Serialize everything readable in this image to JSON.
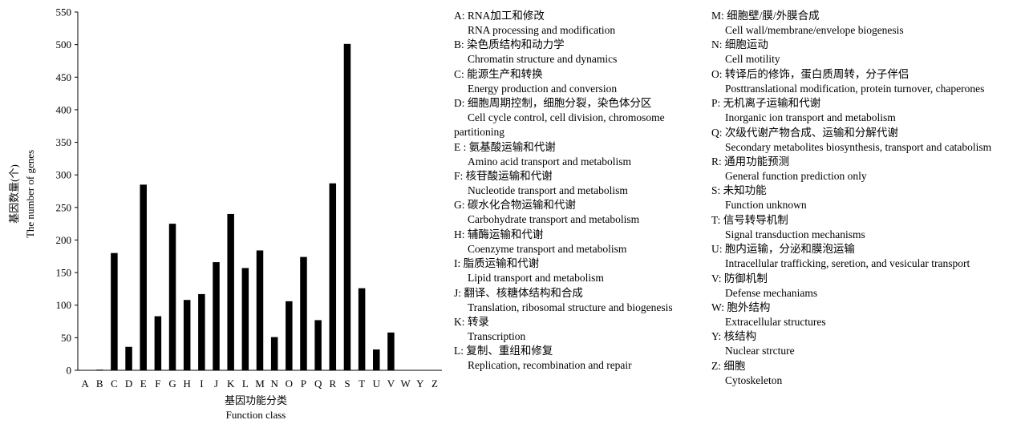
{
  "chart_data": {
    "type": "bar",
    "categories": [
      "A",
      "B",
      "C",
      "D",
      "E",
      "F",
      "G",
      "H",
      "I",
      "J",
      "K",
      "L",
      "M",
      "N",
      "O",
      "P",
      "Q",
      "R",
      "S",
      "T",
      "U",
      "V",
      "W",
      "Y",
      "Z"
    ],
    "values": [
      0,
      1,
      180,
      36,
      285,
      83,
      225,
      108,
      117,
      166,
      240,
      157,
      184,
      51,
      106,
      174,
      77,
      287,
      501,
      126,
      32,
      58,
      0,
      0,
      0
    ],
    "ylim": [
      0,
      550
    ],
    "yticks": [
      0,
      50,
      100,
      150,
      200,
      250,
      300,
      350,
      400,
      450,
      500,
      550
    ],
    "ylabel_cn": "基因数量(个)",
    "ylabel_en": "The number of genes",
    "xlabel_cn": "基因功能分类",
    "xlabel_en": "Function class",
    "bar_color": "#000000",
    "grid": false
  },
  "legend": {
    "left": [
      {
        "cn": "A: RNA加工和修改",
        "en": "RNA processing and modification"
      },
      {
        "cn": "B: 染色质结构和动力学",
        "en": "Chromatin structure and dynamics"
      },
      {
        "cn": "C: 能源生产和转换",
        "en": "Energy production and conversion"
      },
      {
        "cn": "D: 细胞周期控制，细胞分裂，染色体分区",
        "en": "Cell cycle control, cell division, chromosome",
        "en2": "partitioning"
      },
      {
        "cn": "E : 氨基酸运输和代谢",
        "en": "Amino acid transport and metabolism"
      },
      {
        "cn": "F: 核苷酸运输和代谢",
        "en": "Nucleotide transport and metabolism"
      },
      {
        "cn": "G: 碳水化合物运输和代谢",
        "en": "Carbohydrate transport and metabolism"
      },
      {
        "cn": "H: 辅酶运输和代谢",
        "en": "Coenzyme transport and  metabolism"
      },
      {
        "cn": "I: 脂质运输和代谢",
        "en": "Lipid transport and metabolism"
      },
      {
        "cn": "J: 翻译、核糖体结构和合成",
        "en": "Translation, ribosomal structure and biogenesis"
      },
      {
        "cn": "K: 转录",
        "en": "Transcription"
      },
      {
        "cn": "L: 复制、重组和修复",
        "en": "Replication, recombination and repair"
      }
    ],
    "right": [
      {
        "cn": "M: 细胞壁/膜/外膜合成",
        "en": "Cell wall/membrane/envelope biogenesis"
      },
      {
        "cn": "N: 细胞运动",
        "en": "Cell motility"
      },
      {
        "cn": "O: 转译后的修饰，蛋白质周转，分子伴侣",
        "en": "Posttranslational modification, protein turnover, chaperones"
      },
      {
        "cn": "P: 无机离子运输和代谢",
        "en": "Inorganic ion transport and metabolism"
      },
      {
        "cn": "Q: 次级代谢产物合成、运输和分解代谢",
        "en": "Secondary metabolites biosynthesis, transport and catabolism"
      },
      {
        "cn": "R: 通用功能预测",
        "en": "General function prediction only"
      },
      {
        "cn": "S: 未知功能",
        "en": "Function unknown"
      },
      {
        "cn": "T: 信号转导机制",
        "en": "Signal transduction mechanisms"
      },
      {
        "cn": "U: 胞内运输，分泌和膜泡运输",
        "en": "Intracellular trafficking, seretion, and vesicular transport"
      },
      {
        "cn": "V: 防御机制",
        "en": "Defense mechaniams"
      },
      {
        "cn": "W: 胞外结构",
        "en": "Extracellular structures"
      },
      {
        "cn": "Y: 核结构",
        "en": "Nuclear strcture"
      },
      {
        "cn": "Z: 细胞",
        "en": "Cytoskeleton"
      }
    ]
  }
}
